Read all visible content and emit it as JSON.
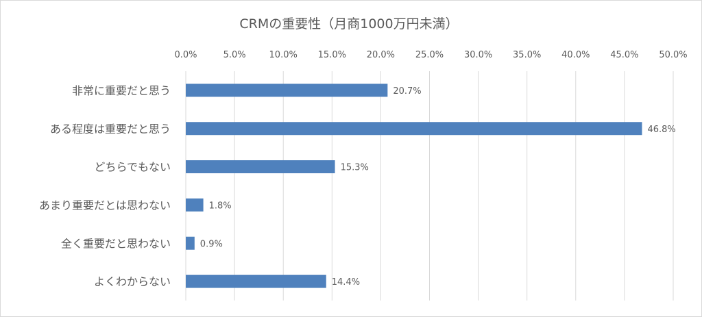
{
  "chart_data": {
    "type": "bar",
    "orientation": "horizontal",
    "title": "CRMの重要性（月商1000万円未満）",
    "categories": [
      "非常に重要だと思う",
      "ある程度は重要だと思う",
      "どちらでもない",
      "あまり重要だとは思わない",
      "全く重要だと思わない",
      "よくわからない"
    ],
    "values": [
      20.7,
      46.8,
      15.3,
      1.8,
      0.9,
      14.4
    ],
    "value_labels": [
      "20.7%",
      "46.8%",
      "15.3%",
      "1.8%",
      "0.9%",
      "14.4%"
    ],
    "xlim": [
      0,
      50
    ],
    "x_ticks": [
      "0.0%",
      "5.0%",
      "10.0%",
      "15.0%",
      "20.0%",
      "25.0%",
      "30.0%",
      "35.0%",
      "40.0%",
      "45.0%",
      "50.0%"
    ],
    "x_axis_position": "top",
    "grid": true,
    "legend": "none",
    "colors": {
      "bar": "#4f81bd",
      "grid": "#d9d9d9",
      "text": "#595959",
      "border": "#d9d9d9"
    }
  }
}
